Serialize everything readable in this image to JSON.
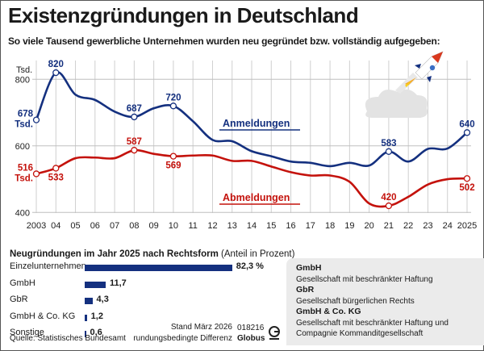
{
  "title": "Existenzgründungen in Deutschland",
  "subtitle": "So viele Tausend gewerbliche Unternehmen wurden neu gegründet bzw. vollständig aufgegeben:",
  "chart_data": [
    {
      "type": "line",
      "ylabel": "Tsd.",
      "ylim": [
        400,
        820
      ],
      "yticks": [
        "800",
        "600",
        "400"
      ],
      "grid": true,
      "xticks": [
        "2003",
        "04",
        "05",
        "06",
        "07",
        "08",
        "09",
        "10",
        "11",
        "12",
        "13",
        "14",
        "15",
        "16",
        "17",
        "18",
        "19",
        "20",
        "21",
        "22",
        "23",
        "24",
        "2025"
      ],
      "x": [
        2003,
        2004,
        2005,
        2006,
        2007,
        2008,
        2009,
        2010,
        2011,
        2012,
        2013,
        2014,
        2015,
        2016,
        2017,
        2018,
        2019,
        2020,
        2021,
        2022,
        2023,
        2024,
        2025
      ],
      "series": [
        {
          "name": "Anmeldungen",
          "color": "#14307f",
          "values": [
            678,
            820,
            754,
            738,
            703,
            687,
            713,
            720,
            674,
            618,
            614,
            584,
            569,
            553,
            549,
            539,
            549,
            541,
            583,
            553,
            591,
            592,
            640
          ],
          "labels": [
            {
              "year": 2003,
              "text": "678",
              "unit": "Tsd."
            },
            {
              "year": 2004,
              "text": "820"
            },
            {
              "year": 2008,
              "text": "687"
            },
            {
              "year": 2010,
              "text": "720"
            },
            {
              "year": 2021,
              "text": "583"
            },
            {
              "year": 2025,
              "text": "640"
            }
          ]
        },
        {
          "name": "Abmeldungen",
          "color": "#c4120c",
          "values": [
            516,
            533,
            563,
            565,
            563,
            587,
            576,
            569,
            571,
            571,
            555,
            555,
            538,
            521,
            511,
            511,
            492,
            427,
            420,
            447,
            484,
            500,
            502
          ],
          "labels": [
            {
              "year": 2003,
              "text": "516",
              "unit": "Tsd."
            },
            {
              "year": 2004,
              "text": "533"
            },
            {
              "year": 2008,
              "text": "587"
            },
            {
              "year": 2010,
              "text": "569"
            },
            {
              "year": 2021,
              "text": "420"
            },
            {
              "year": 2025,
              "text": "502"
            }
          ]
        }
      ]
    },
    {
      "type": "bar",
      "orientation": "horizontal",
      "title": "Neugründungen im Jahr 2025 nach Rechtsform",
      "title_suffix": "(Anteil in Prozent)",
      "categories": [
        "Einzelunternehmen",
        "GmbH",
        "GbR",
        "GmbH & Co. KG",
        "Sonstige"
      ],
      "values": [
        82.3,
        11.7,
        4.3,
        1.2,
        0.6
      ],
      "value_labels": [
        "82,3 %",
        "11,7",
        "4,3",
        "1,2",
        "0,6"
      ],
      "color": "#14307f"
    }
  ],
  "legend_box": [
    {
      "abbr": "GmbH",
      "full": "Gesellschaft mit beschränkter Haftung"
    },
    {
      "abbr": "GbR",
      "full": "Gesellschaft bürgerlichen Rechts"
    },
    {
      "abbr": "GmbH & Co. KG",
      "full": "Gesellschaft mit beschränkter Haftung und Compagnie Kommanditgesellschaft"
    }
  ],
  "footer": {
    "source": "Quelle: Statistisches Bundesamt",
    "stand": "Stand März 2026",
    "rounding": "rundungsbedingte Differenz",
    "code": "018216",
    "brand": "Globus"
  }
}
